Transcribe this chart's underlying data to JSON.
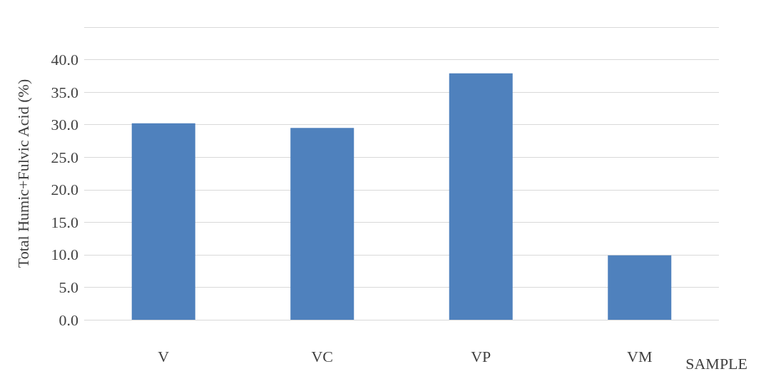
{
  "chart_data": {
    "type": "bar",
    "categories": [
      "V",
      "VC",
      "VP",
      "VM"
    ],
    "values": [
      30.2,
      29.5,
      37.9,
      9.9
    ],
    "color": "#4f81bd",
    "xlabel": "SAMPLE",
    "ylabel": "Total Humic+Fulvic Acid (%)",
    "ylim": [
      0,
      45
    ],
    "yticks": [
      {
        "value": 0,
        "label": "0.0"
      },
      {
        "value": 5,
        "label": "5.0"
      },
      {
        "value": 10,
        "label": "10.0"
      },
      {
        "value": 15,
        "label": "15.0"
      },
      {
        "value": 20,
        "label": "20.0"
      },
      {
        "value": 25,
        "label": "25.0"
      },
      {
        "value": 30,
        "label": "30.0"
      },
      {
        "value": 35,
        "label": "35.0"
      },
      {
        "value": 40,
        "label": "40.0"
      },
      {
        "value": 45,
        "label": null
      }
    ],
    "grid": "y"
  }
}
